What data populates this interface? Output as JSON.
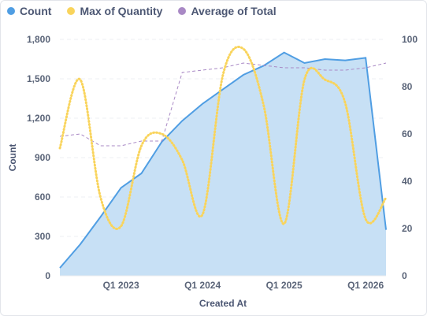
{
  "chart_data": {
    "type": "combo",
    "xlabel": "Created At",
    "ylabel": "Count",
    "ylim": [
      0,
      1800
    ],
    "y2lim": [
      0,
      100
    ],
    "y_ticks": [
      "0",
      "300",
      "600",
      "900",
      "1,200",
      "1,500",
      "1,800"
    ],
    "y2_ticks": [
      "0",
      "20",
      "40",
      "60",
      "80",
      "100"
    ],
    "x_tick_labels": [
      "Q1 2023",
      "Q1 2024",
      "Q1 2025",
      "Q1 2026"
    ],
    "x_tick_positions": [
      2023.0,
      2024.0,
      2025.0,
      2026.0
    ],
    "xlim": [
      2022.25,
      2026.25
    ],
    "x": [
      2022.25,
      2022.5,
      2022.75,
      2023.0,
      2023.25,
      2023.5,
      2023.75,
      2024.0,
      2024.25,
      2024.5,
      2024.75,
      2025.0,
      2025.25,
      2025.5,
      2025.75,
      2026.0,
      2026.25
    ],
    "series": [
      {
        "name": "Count",
        "type": "area",
        "axis": "left",
        "color": "#509ee3",
        "values": [
          60,
          240,
          450,
          670,
          780,
          1020,
          1180,
          1310,
          1420,
          1530,
          1600,
          1700,
          1620,
          1650,
          1640,
          1660,
          350
        ]
      },
      {
        "name": "Max of Quantity",
        "type": "line-dotted",
        "axis": "right",
        "color": "#f9d45c",
        "values": [
          54,
          83,
          33,
          21,
          55,
          60,
          49,
          26,
          85,
          96,
          72,
          22,
          83,
          83,
          73,
          24,
          33
        ]
      },
      {
        "name": "Average of Total",
        "type": "line-dashed",
        "axis": "right",
        "color": "#a989c5",
        "values": [
          59,
          60,
          55,
          55,
          57,
          57,
          86,
          87,
          88,
          90,
          89,
          88,
          88,
          87,
          87,
          88,
          90
        ]
      }
    ],
    "legend_position": "top-left",
    "grid": true
  }
}
